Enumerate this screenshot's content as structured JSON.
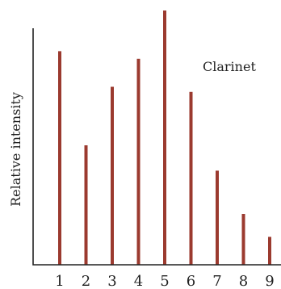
{
  "chart_data": {
    "type": "bar",
    "title": "",
    "xlabel": "",
    "ylabel": "Relative intensity",
    "annotation": "Clarinet",
    "categories": [
      "1",
      "2",
      "3",
      "4",
      "5",
      "6",
      "7",
      "8",
      "9"
    ],
    "values": [
      0.84,
      0.47,
      0.7,
      0.81,
      1.0,
      0.68,
      0.37,
      0.2,
      0.11
    ],
    "ylim": [
      0,
      1
    ],
    "grid": false,
    "bar_color": "#9B3A2F"
  }
}
